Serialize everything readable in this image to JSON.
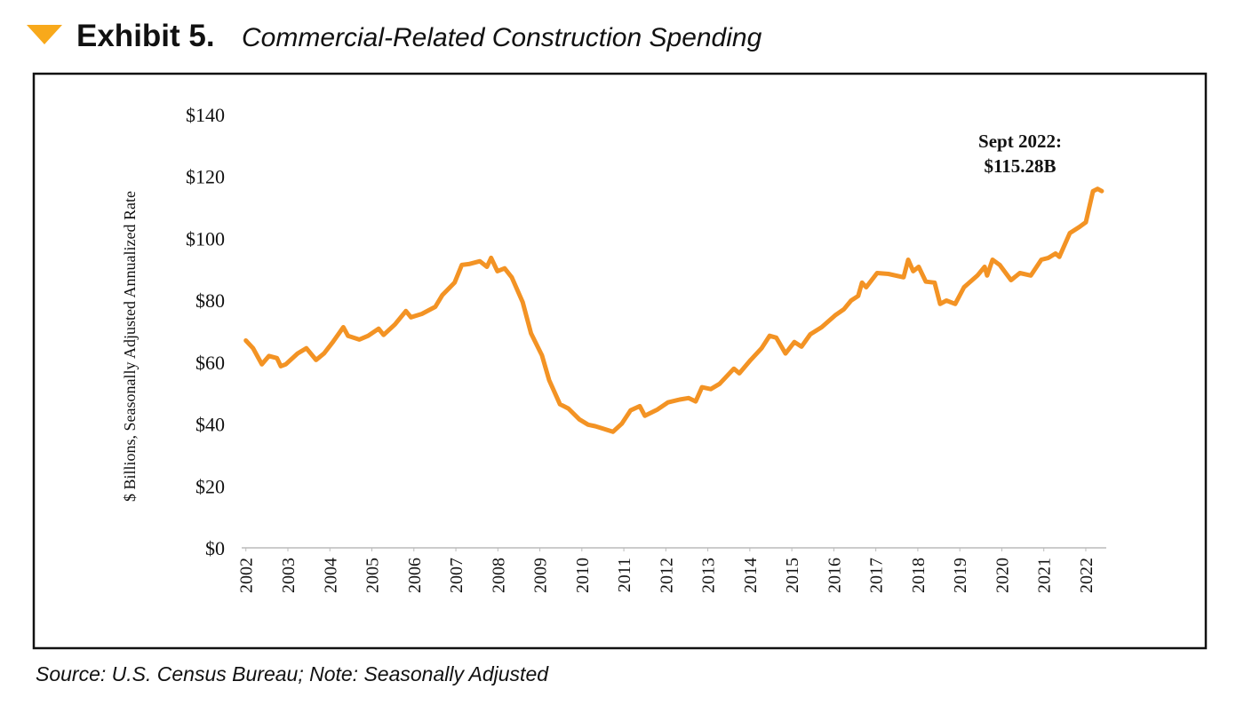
{
  "header": {
    "exhibit": "Exhibit 5.",
    "title": "Commercial-Related Construction Spending"
  },
  "chart_data": {
    "type": "line",
    "ylabel": "$ Billions, Seasonally Adjusted Annualized Rate",
    "annotation": [
      "Sept 2022:",
      "$115.28B"
    ],
    "x": [
      2002.0,
      2002.17,
      2002.38,
      2002.55,
      2002.74,
      2002.83,
      2002.95,
      2003.23,
      2003.44,
      2003.67,
      2003.86,
      2004.07,
      2004.32,
      2004.43,
      2004.7,
      2004.91,
      2005.16,
      2005.28,
      2005.55,
      2005.81,
      2005.93,
      2006.19,
      2006.51,
      2006.68,
      2006.97,
      2007.14,
      2007.31,
      2007.57,
      2007.74,
      2007.84,
      2007.99,
      2008.16,
      2008.33,
      2008.59,
      2008.79,
      2009.05,
      2009.22,
      2009.48,
      2009.68,
      2009.94,
      2010.15,
      2010.32,
      2010.53,
      2010.74,
      2010.95,
      2011.16,
      2011.38,
      2011.5,
      2011.8,
      2012.05,
      2012.33,
      2012.54,
      2012.71,
      2012.86,
      2013.07,
      2013.28,
      2013.62,
      2013.75,
      2014.02,
      2014.28,
      2014.47,
      2014.63,
      2014.85,
      2015.06,
      2015.23,
      2015.44,
      2015.71,
      2016.03,
      2016.24,
      2016.41,
      2016.58,
      2016.67,
      2016.77,
      2017.03,
      2017.3,
      2017.66,
      2017.77,
      2017.89,
      2018.02,
      2018.19,
      2018.4,
      2018.53,
      2018.68,
      2018.89,
      2019.1,
      2019.42,
      2019.59,
      2019.65,
      2019.78,
      2019.95,
      2020.22,
      2020.43,
      2020.69,
      2020.94,
      2021.11,
      2021.28,
      2021.37,
      2021.62,
      2021.85,
      2022.0,
      2022.17,
      2022.28,
      2022.38
    ],
    "series": [
      {
        "name": "Commercial-Related Construction Spending",
        "color": "#f39324",
        "values": [
          67,
          64.5,
          59.3,
          62,
          61.3,
          58.7,
          59.3,
          62.8,
          64.5,
          60.7,
          62.8,
          66.5,
          71.3,
          68.5,
          67.3,
          68.5,
          70.8,
          68.8,
          72.2,
          76.5,
          74.5,
          75.6,
          77.9,
          81.7,
          85.7,
          91.4,
          91.7,
          92.6,
          90.8,
          93.7,
          89.4,
          90.3,
          87.4,
          79.4,
          69.3,
          62.2,
          54.2,
          46.4,
          45,
          41.5,
          39.8,
          39.3,
          38.4,
          37.5,
          40.1,
          44.4,
          45.8,
          42.7,
          44.7,
          47,
          47.9,
          48.4,
          47.3,
          51.9,
          51.3,
          53,
          57.9,
          56.4,
          60.7,
          64.5,
          68.5,
          67.9,
          62.8,
          66.5,
          65,
          69,
          71.3,
          75.1,
          77.1,
          79.9,
          81.4,
          85.7,
          84.2,
          88.8,
          88.5,
          87.4,
          93.1,
          89.4,
          90.8,
          86,
          85.7,
          78.8,
          79.9,
          78.8,
          84.2,
          88,
          90.8,
          88,
          93.1,
          91.4,
          86.5,
          88.8,
          88,
          93.1,
          93.7,
          95.1,
          94,
          101.7,
          103.7,
          105.2,
          115.2,
          116,
          115.28
        ]
      }
    ],
    "xlim": [
      2001.9,
      2022.5
    ],
    "xticks": [
      2002,
      2003,
      2004,
      2005,
      2006,
      2007,
      2008,
      2009,
      2010,
      2011,
      2012,
      2013,
      2014,
      2015,
      2016,
      2017,
      2018,
      2019,
      2020,
      2021,
      2022
    ],
    "ylim": [
      0,
      140
    ],
    "yticks": [
      {
        "value": 0,
        "label": "$0"
      },
      {
        "value": 20,
        "label": "$20"
      },
      {
        "value": 40,
        "label": "$40"
      },
      {
        "value": 60,
        "label": "$60"
      },
      {
        "value": 80,
        "label": "$80"
      },
      {
        "value": 100,
        "label": "$100"
      },
      {
        "value": 120,
        "label": "$120"
      },
      {
        "value": 140,
        "label": "$140"
      }
    ],
    "grid": false
  },
  "footer": {
    "source": "Source: U.S. Census Bureau; Note: Seasonally Adjusted"
  }
}
